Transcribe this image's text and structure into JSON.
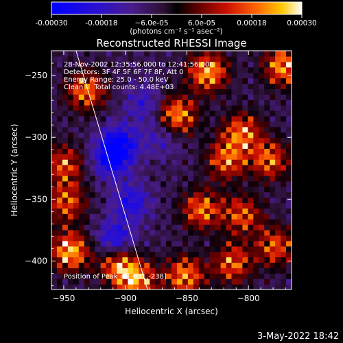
{
  "chart_data": {
    "type": "heatmap",
    "title": "Reconstructed RHESSI Image",
    "xlabel": "Heliocentric X (arcsec)",
    "ylabel": "Heliocentric Y (arcsec)",
    "xlim": [
      -960,
      -765
    ],
    "ylim": [
      -423,
      -230
    ],
    "x_ticks": [
      -950,
      -900,
      -850,
      -800
    ],
    "y_ticks": [
      -250,
      -300,
      -350,
      -400
    ],
    "colorbar": {
      "range": [
        -0.0003,
        0.0003
      ],
      "tick_values": [
        -0.0003,
        -0.00018,
        -6e-05,
        6e-05,
        0.00018,
        0.0003
      ],
      "tick_labels": [
        "-0.00030",
        "-0.00018",
        "−6.0e-05",
        "6.0e-05",
        "0.00018",
        "0.00030"
      ],
      "unit": "(photons cm⁻² s⁻¹ asec⁻²)"
    },
    "info_lines": [
      "28-Nov-2002 12:35:56.000 to 12:41:56.000",
      "Detectors: 3F 4F 5F 6F 7F 8F, Att 0",
      "Energy Range: 25.0 - 50.0 keV",
      "Clean     Total counts: 4.48E+03"
    ],
    "peak_text": "Position of Peak = [-831,-238]",
    "limb_curve": [
      [
        -940,
        -230
      ],
      [
        -910,
        -330
      ],
      [
        -882,
        -423
      ]
    ],
    "hot_regions": [
      {
        "x": -945,
        "y": -392,
        "level": 1.0
      },
      {
        "x": -905,
        "y": -404,
        "level": 0.85
      },
      {
        "x": -890,
        "y": -416,
        "level": 0.8
      },
      {
        "x": -932,
        "y": -262,
        "level": 0.8
      },
      {
        "x": -950,
        "y": -322,
        "level": 0.7
      },
      {
        "x": -948,
        "y": -352,
        "level": 0.7
      },
      {
        "x": -858,
        "y": -282,
        "level": 0.9
      },
      {
        "x": -833,
        "y": -247,
        "level": 0.95
      },
      {
        "x": -805,
        "y": -296,
        "level": 0.8
      },
      {
        "x": -818,
        "y": -318,
        "level": 0.75
      },
      {
        "x": -783,
        "y": -318,
        "level": 0.75
      },
      {
        "x": -838,
        "y": -358,
        "level": 0.8
      },
      {
        "x": -805,
        "y": -363,
        "level": 0.7
      },
      {
        "x": -852,
        "y": -412,
        "level": 0.85
      },
      {
        "x": -813,
        "y": -402,
        "level": 0.75
      },
      {
        "x": -778,
        "y": -388,
        "level": 0.7
      },
      {
        "x": -772,
        "y": -242,
        "level": 0.9
      }
    ],
    "cold_regions": [
      {
        "x": -905,
        "y": -305,
        "level": -0.7
      },
      {
        "x": -912,
        "y": -318,
        "level": -0.6
      },
      {
        "x": -895,
        "y": -352,
        "level": -0.55
      },
      {
        "x": -908,
        "y": -382,
        "level": -0.6
      },
      {
        "x": -885,
        "y": -272,
        "level": -0.4
      },
      {
        "x": -870,
        "y": -300,
        "level": -0.35
      }
    ]
  },
  "footer": {
    "date_text": "3-May-2022 18:42"
  }
}
